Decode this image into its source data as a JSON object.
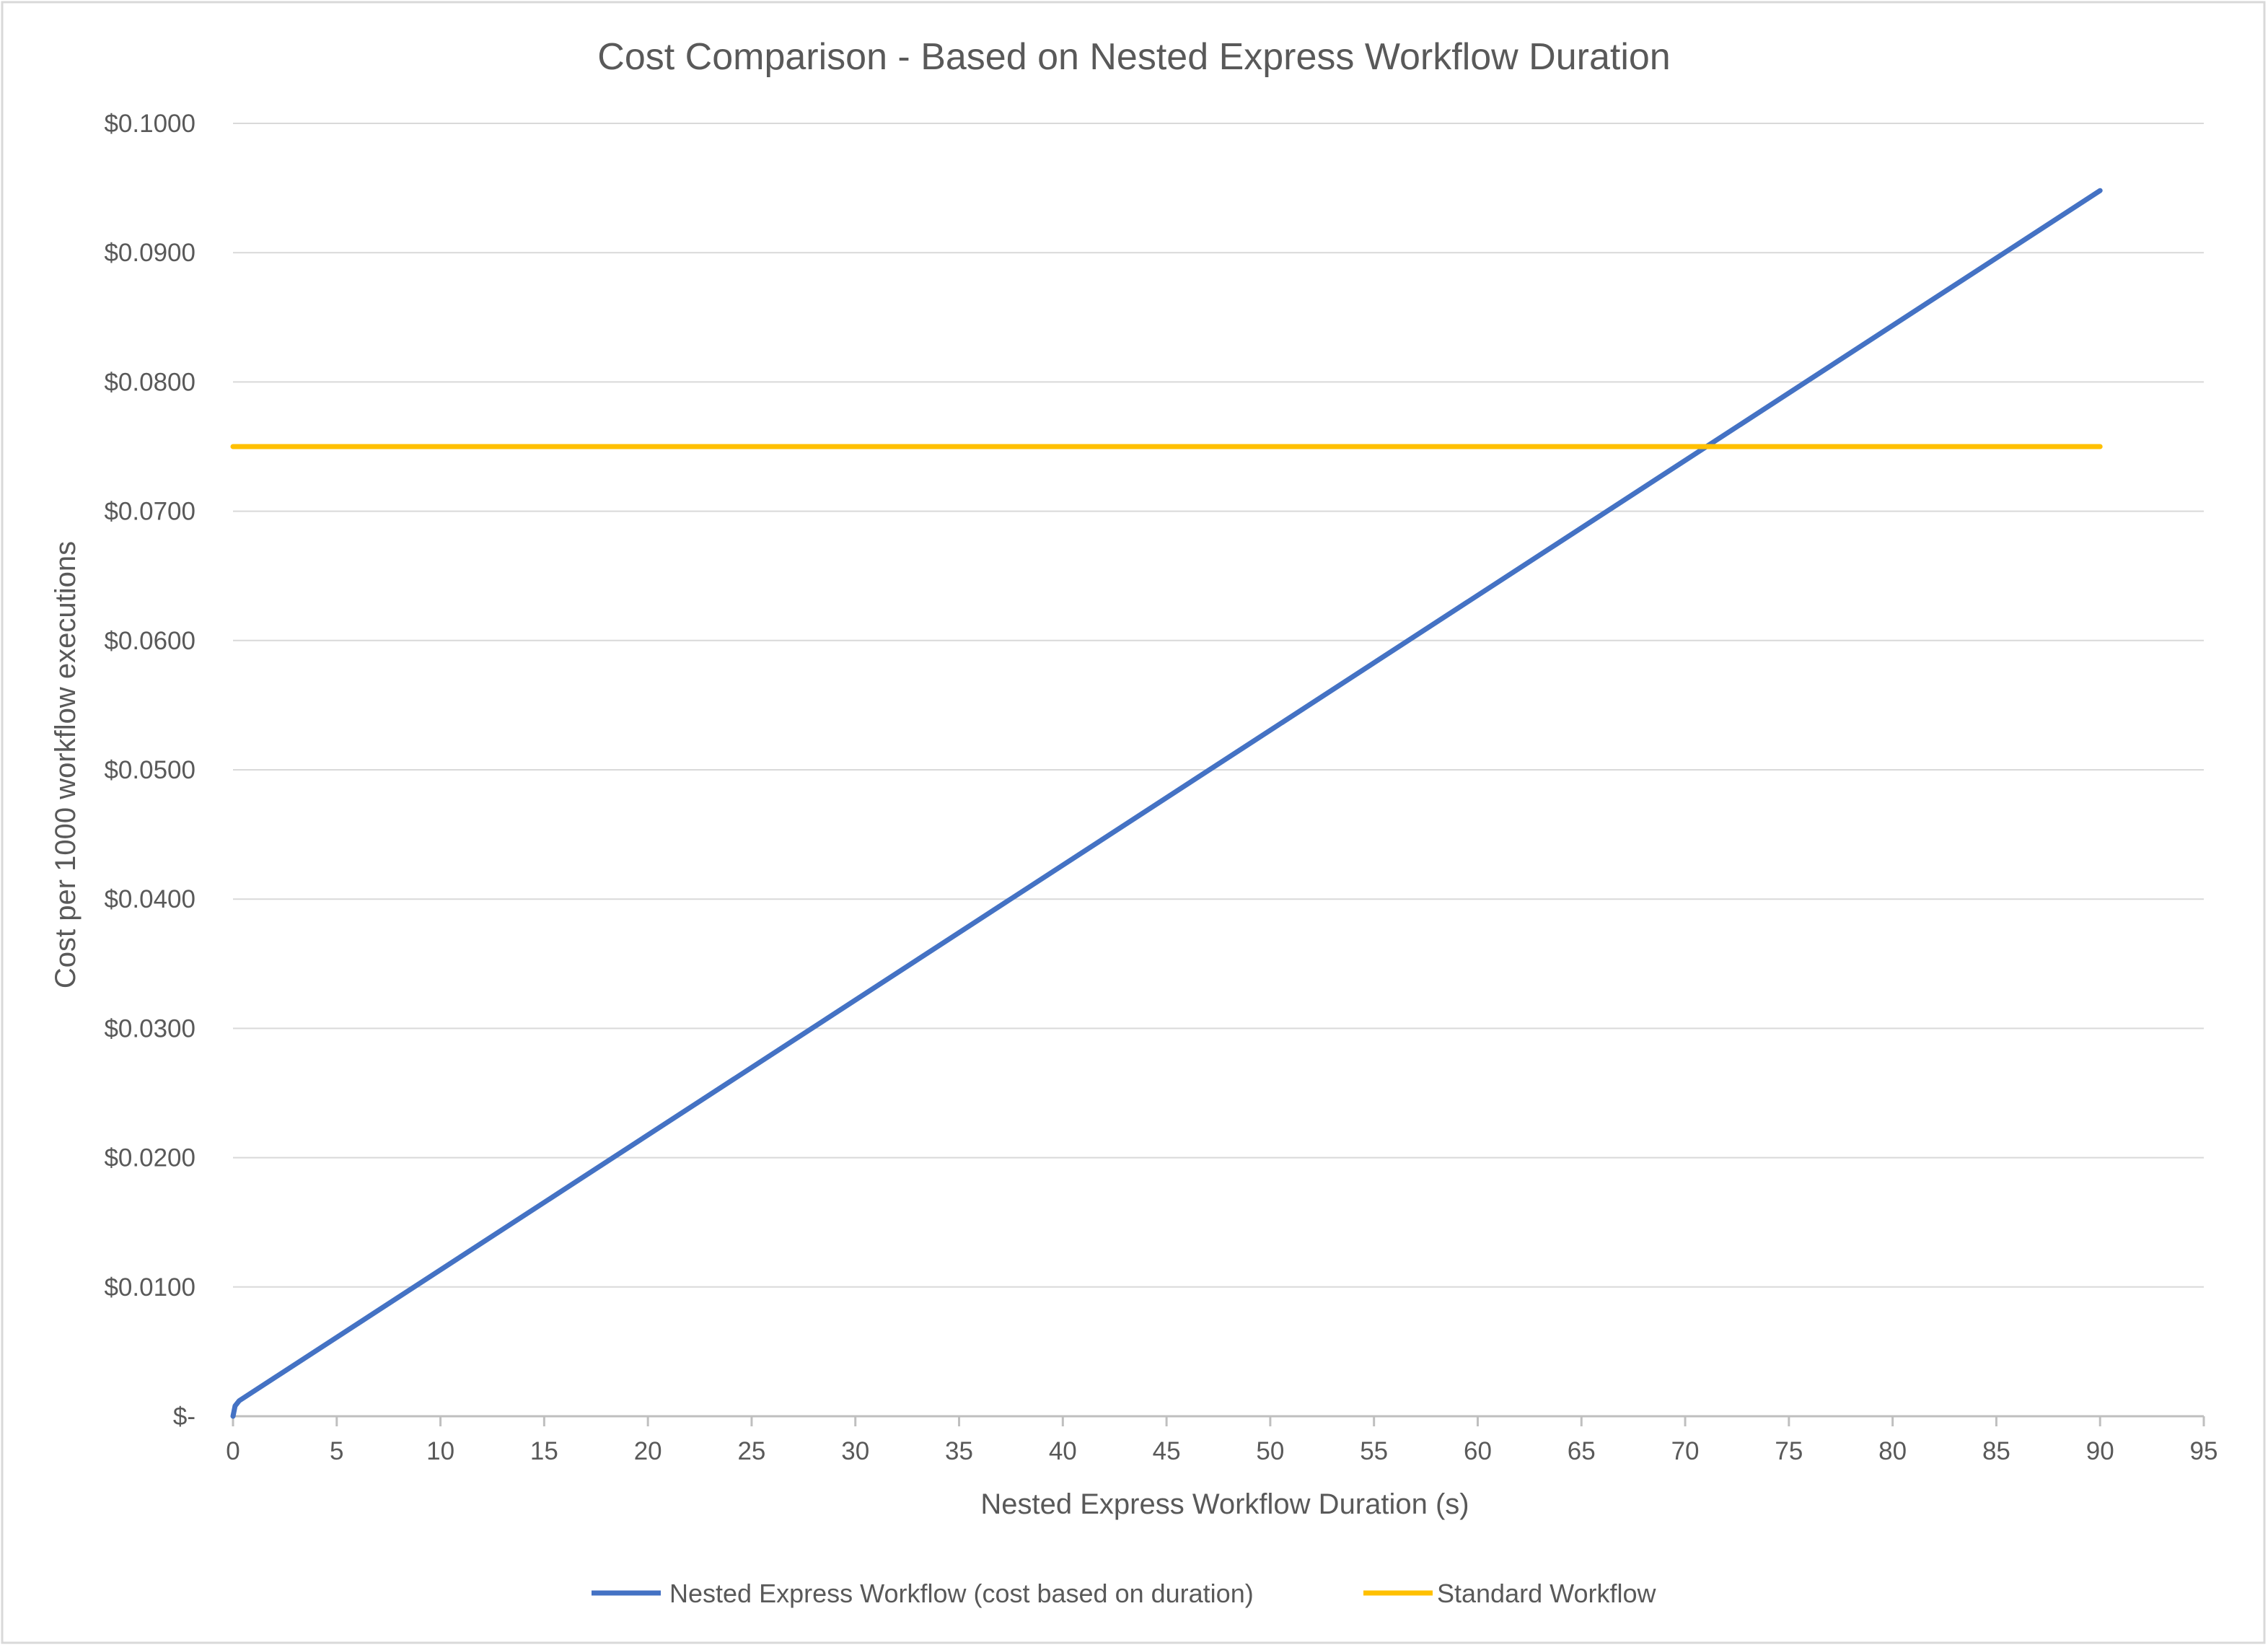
{
  "chart_data": {
    "type": "line",
    "title": "Cost Comparison - Based on Nested Express Workflow Duration",
    "xlabel": "Nested Express Workflow Duration (s)",
    "ylabel": "Cost per 1000 workflow executions",
    "xlim": [
      0,
      95
    ],
    "ylim": [
      0,
      0.1
    ],
    "x_ticks": [
      "0",
      "5",
      "10",
      "15",
      "20",
      "25",
      "30",
      "35",
      "40",
      "45",
      "50",
      "55",
      "60",
      "65",
      "70",
      "75",
      "80",
      "85",
      "90",
      "95"
    ],
    "y_ticks": [
      "$-",
      "$0.0100",
      "$0.0200",
      "$0.0300",
      "$0.0400",
      "$0.0500",
      "$0.0600",
      "$0.0700",
      "$0.0800",
      "$0.0900",
      "$0.1000"
    ],
    "grid": "horizontal",
    "legend_position": "bottom",
    "series": [
      {
        "name": "Nested Express Workflow (cost based on duration)",
        "color": "#4472C4",
        "x": [
          0,
          0.1,
          0.3,
          90
        ],
        "y": [
          0,
          0.0008,
          0.0012,
          0.0948
        ]
      },
      {
        "name": "Standard Workflow",
        "color": "#FFC000",
        "x": [
          0,
          90
        ],
        "y": [
          0.075,
          0.075
        ]
      }
    ],
    "gridline_color": "#d9d9d9",
    "axis_color": "#bfbfbf",
    "border_color": "#d9d9d9"
  }
}
